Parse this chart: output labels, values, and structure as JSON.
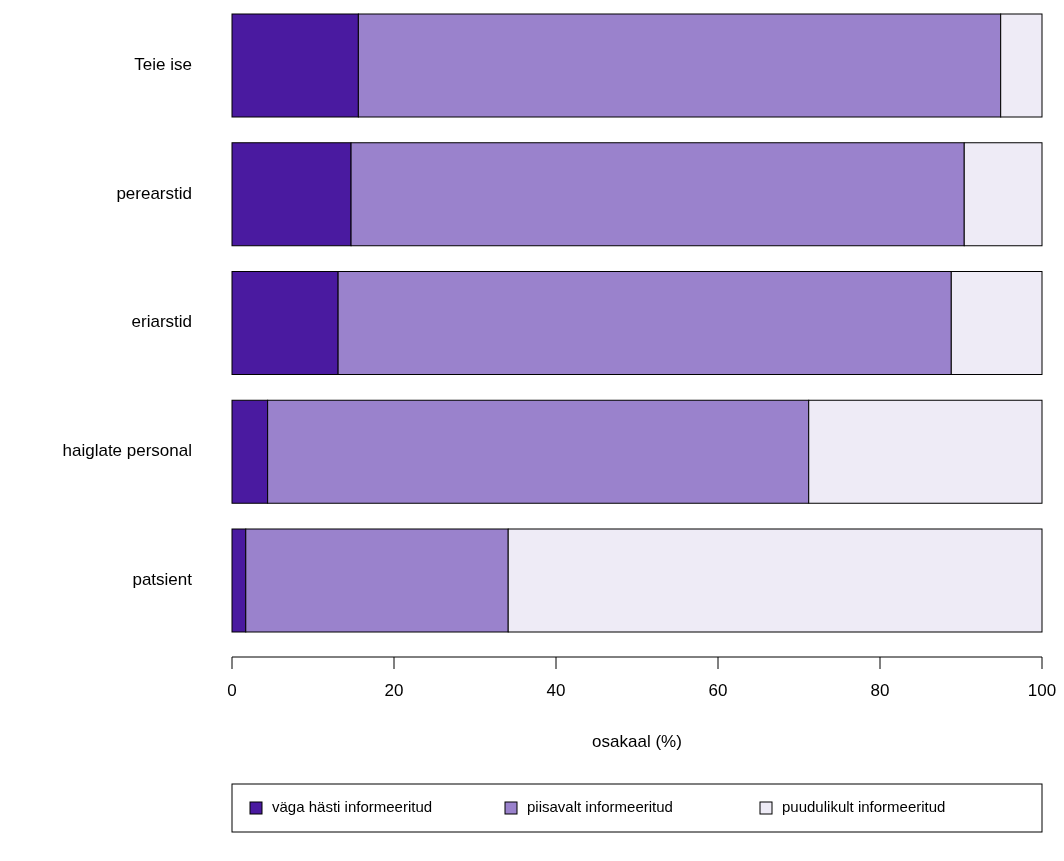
{
  "chart_data": {
    "type": "bar",
    "orientation": "horizontal",
    "stacked": true,
    "xlabel": "osakaal (%)",
    "categories": [
      "Teie ise",
      "perearstid",
      "eriarstid",
      "haiglate personal",
      "patsient"
    ],
    "series": [
      {
        "name": "väga hästi informeeritud",
        "color": "#4a1aa0",
        "values": [
          15.6,
          14.7,
          13.1,
          4.4,
          1.7
        ]
      },
      {
        "name": "piisavalt informeeritud",
        "color": "#9a82cc",
        "values": [
          79.3,
          75.7,
          75.7,
          66.8,
          32.4
        ]
      },
      {
        "name": "puudulikult informeeritud",
        "color": "#eeebf6",
        "values": [
          5.1,
          9.6,
          11.2,
          28.8,
          65.9
        ]
      }
    ],
    "xlim": [
      0,
      100
    ],
    "xticks": [
      0,
      20,
      40,
      60,
      80,
      100
    ],
    "grid": false,
    "legend": "bottom"
  }
}
